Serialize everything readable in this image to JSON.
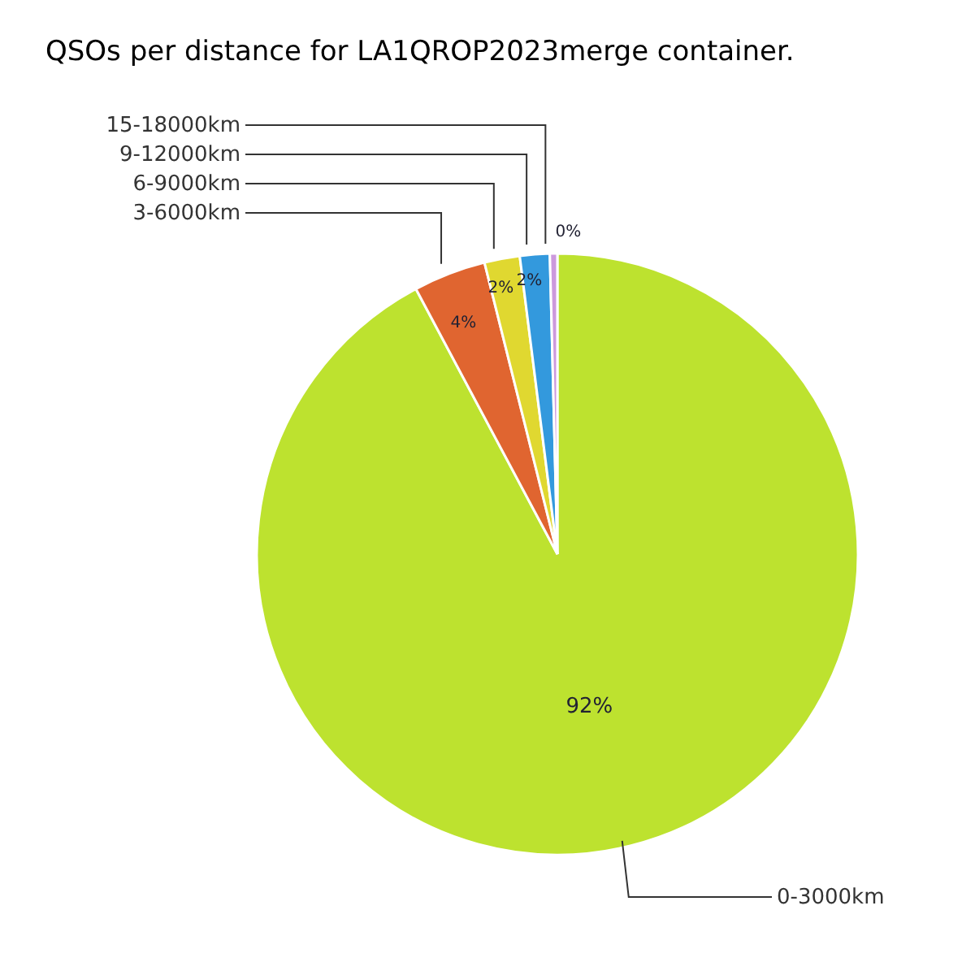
{
  "chart_data": {
    "type": "pie",
    "title": "QSOs per distance for LA1QROP2023merge container.",
    "categories": [
      "0-3000km",
      "3-6000km",
      "6-9000km",
      "9-12000km",
      "15-18000km"
    ],
    "values": [
      92.2,
      3.9,
      1.9,
      1.6,
      0.4
    ],
    "colors": [
      "#bde22f",
      "#e06530",
      "#e0d830",
      "#3399dd",
      "#cc99dd"
    ],
    "value_labels": [
      "92%",
      "4%",
      "2%",
      "2%",
      "0%"
    ],
    "legend": false
  }
}
